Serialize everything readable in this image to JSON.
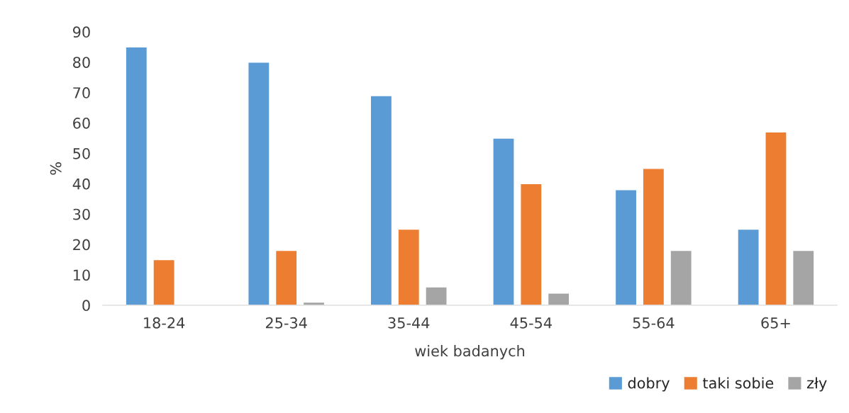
{
  "chart_data": {
    "type": "bar",
    "xlabel": "wiek badanych",
    "ylabel": "%",
    "categories": [
      "18-24",
      "25-34",
      "35-44",
      "45-54",
      "55-64",
      "65+"
    ],
    "series": [
      {
        "name": "dobry",
        "color": "#5b9bd5",
        "values": [
          85,
          80,
          69,
          55,
          38,
          25
        ]
      },
      {
        "name": "taki sobie",
        "color": "#ed7d31",
        "values": [
          15,
          18,
          25,
          40,
          45,
          57
        ]
      },
      {
        "name": "zły",
        "color": "#a5a5a5",
        "values": [
          null,
          1,
          6,
          4,
          18,
          18
        ]
      }
    ],
    "ylim": [
      0,
      90
    ],
    "yticks": [
      0,
      10,
      20,
      30,
      40,
      50,
      60,
      70,
      80,
      90
    ],
    "grid": false,
    "legend": "bottom right"
  }
}
